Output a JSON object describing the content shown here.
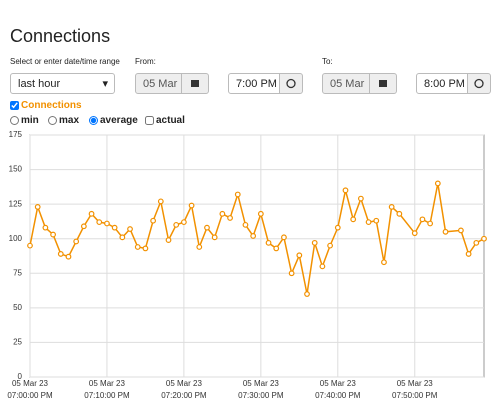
{
  "page": {
    "title": "Connections",
    "range_label": "Select or enter date/time range",
    "range_value": "last hour",
    "from_label": "From:",
    "from_date": "05 Mar 23",
    "from_time": "7:00 PM",
    "to_label": "To:",
    "to_date": "05 Mar 23",
    "to_time": "8:00 PM",
    "series_toggle": "Connections",
    "options": [
      "min",
      "max",
      "average",
      "actual"
    ]
  },
  "chart_data": {
    "type": "line",
    "color": "#f29100",
    "grid": true,
    "x": [
      "2023-03-05T19:00:00",
      "2023-03-05T19:01:00",
      "2023-03-05T19:02:00",
      "2023-03-05T19:03:00",
      "2023-03-05T19:04:00",
      "2023-03-05T19:05:00",
      "2023-03-05T19:06:00",
      "2023-03-05T19:07:00",
      "2023-03-05T19:08:00",
      "2023-03-05T19:09:00",
      "2023-03-05T19:10:00",
      "2023-03-05T19:11:00",
      "2023-03-05T19:12:00",
      "2023-03-05T19:13:00",
      "2023-03-05T19:14:00",
      "2023-03-05T19:15:00",
      "2023-03-05T19:16:00",
      "2023-03-05T19:17:00",
      "2023-03-05T19:18:00",
      "2023-03-05T19:19:00",
      "2023-03-05T19:20:00",
      "2023-03-05T19:21:00",
      "2023-03-05T19:22:00",
      "2023-03-05T19:23:00",
      "2023-03-05T19:24:00",
      "2023-03-05T19:25:00",
      "2023-03-05T19:26:00",
      "2023-03-05T19:27:00",
      "2023-03-05T19:28:00",
      "2023-03-05T19:29:00",
      "2023-03-05T19:30:00",
      "2023-03-05T19:31:00",
      "2023-03-05T19:32:00",
      "2023-03-05T19:33:00",
      "2023-03-05T19:34:00",
      "2023-03-05T19:35:00",
      "2023-03-05T19:36:00",
      "2023-03-05T19:37:00",
      "2023-03-05T19:38:00",
      "2023-03-05T19:39:00",
      "2023-03-05T19:40:00",
      "2023-03-05T19:41:00",
      "2023-03-05T19:42:00",
      "2023-03-05T19:43:00",
      "2023-03-05T19:44:00",
      "2023-03-05T19:45:00",
      "2023-03-05T19:46:00",
      "2023-03-05T19:47:00",
      "2023-03-05T19:48:00",
      "2023-03-05T19:50:00",
      "2023-03-05T19:51:00",
      "2023-03-05T19:52:00",
      "2023-03-05T19:53:00",
      "2023-03-05T19:54:00",
      "2023-03-05T19:56:00",
      "2023-03-05T19:57:00",
      "2023-03-05T19:58:00",
      "2023-03-05T19:59:00"
    ],
    "values": [
      95,
      123,
      108,
      103,
      89,
      87,
      98,
      109,
      118,
      112,
      111,
      108,
      101,
      107,
      94,
      93,
      113,
      127,
      99,
      110,
      112,
      124,
      94,
      108,
      101,
      118,
      115,
      132,
      110,
      102,
      118,
      97,
      93,
      101,
      75,
      88,
      60,
      97,
      80,
      95,
      108,
      135,
      114,
      129,
      112,
      113,
      83,
      123,
      118,
      104,
      114,
      111,
      140,
      105,
      106,
      89,
      97,
      100
    ],
    "xlim": [
      "2023-03-05T19:00:00",
      "2023-03-05T19:59:00"
    ],
    "xticks": [
      {
        "value": "2023-03-05T19:00:00",
        "label": [
          "05 Mar 23",
          "07:00:00 PM"
        ]
      },
      {
        "value": "2023-03-05T19:10:00",
        "label": [
          "05 Mar 23",
          "07:10:00 PM"
        ]
      },
      {
        "value": "2023-03-05T19:20:00",
        "label": [
          "05 Mar 23",
          "07:20:00 PM"
        ]
      },
      {
        "value": "2023-03-05T19:30:00",
        "label": [
          "05 Mar 23",
          "07:30:00 PM"
        ]
      },
      {
        "value": "2023-03-05T19:40:00",
        "label": [
          "05 Mar 23",
          "07:40:00 PM"
        ]
      },
      {
        "value": "2023-03-05T19:50:00",
        "label": [
          "05 Mar 23",
          "07:50:00 PM"
        ]
      }
    ],
    "ylim": [
      0,
      175
    ],
    "yticks": [
      0,
      25,
      50,
      75,
      100,
      125,
      150,
      175
    ]
  }
}
